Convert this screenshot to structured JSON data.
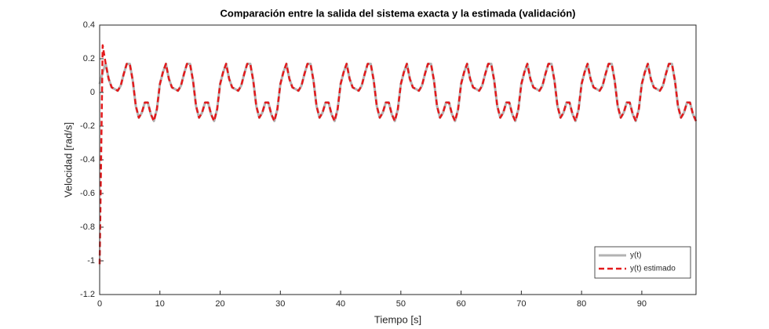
{
  "chart_data": {
    "type": "line",
    "title": "Comparación entre la salida del sistema exacta y la estimada (validación)",
    "x_label": "Tiempo [s]",
    "y_label": "Velocidad [rad/s]",
    "xlim": [
      0,
      99
    ],
    "ylim": [
      -1.2,
      0.4
    ],
    "xticks": [
      0,
      10,
      20,
      30,
      40,
      50,
      60,
      70,
      80,
      90
    ],
    "yticks": [
      -1.2,
      -1,
      -0.8,
      -0.6,
      -0.4,
      -0.2,
      0,
      0.2,
      0.4
    ],
    "legend_position": "southeast",
    "x": [
      0,
      0.5,
      1,
      1.5,
      2,
      2.5,
      3,
      3.5,
      4,
      4.5,
      5,
      5.5,
      6,
      6.5,
      7,
      7.5,
      8,
      8.5,
      9,
      9.5,
      10,
      10.5,
      11,
      11.5,
      12,
      12.5,
      13,
      13.5,
      14,
      14.5,
      15,
      15.5,
      16,
      16.5,
      17,
      17.5,
      18,
      18.5,
      19,
      19.5,
      20,
      20.5,
      21,
      21.5,
      22,
      22.5,
      23,
      23.5,
      24,
      24.5,
      25,
      25.5,
      26,
      26.5,
      27,
      27.5,
      28,
      28.5,
      29,
      29.5,
      30,
      30.5,
      31,
      31.5,
      32,
      32.5,
      33,
      33.5,
      34,
      34.5,
      35,
      35.5,
      36,
      36.5,
      37,
      37.5,
      38,
      38.5,
      39,
      39.5,
      40,
      40.5,
      41,
      41.5,
      42,
      42.5,
      43,
      43.5,
      44,
      44.5,
      45,
      45.5,
      46,
      46.5,
      47,
      47.5,
      48,
      48.5,
      49,
      49.5,
      50,
      50.5,
      51,
      51.5,
      52,
      52.5,
      53,
      53.5,
      54,
      54.5,
      55,
      55.5,
      56,
      56.5,
      57,
      57.5,
      58,
      58.5,
      59,
      59.5,
      60,
      60.5,
      61,
      61.5,
      62,
      62.5,
      63,
      63.5,
      64,
      64.5,
      65,
      65.5,
      66,
      66.5,
      67,
      67.5,
      68,
      68.5,
      69,
      69.5,
      70,
      70.5,
      71,
      71.5,
      72,
      72.5,
      73,
      73.5,
      74,
      74.5,
      75,
      75.5,
      76,
      76.5,
      77,
      77.5,
      78,
      78.5,
      79,
      79.5,
      80,
      80.5,
      81,
      81.5,
      82,
      82.5,
      83,
      83.5,
      84,
      84.5,
      85,
      85.5,
      86,
      86.5,
      87,
      87.5,
      88,
      88.5,
      89,
      89.5,
      90,
      90.5,
      91,
      91.5,
      92,
      92.5,
      93,
      93.5,
      94,
      94.5,
      95,
      95.5,
      96,
      96.5,
      97,
      97.5,
      98,
      98.5,
      99
    ],
    "series": [
      {
        "name": "y(t)",
        "color": "#b3b3b3",
        "dashed": false,
        "values": [
          0.05,
          0.12,
          0.17,
          0.08,
          0.03,
          0.02,
          0.01,
          0.04,
          0.11,
          0.17,
          0.17,
          0.07,
          -0.08,
          -0.15,
          -0.12,
          -0.06,
          -0.06,
          -0.13,
          -0.17,
          -0.1,
          0.05,
          0.12,
          0.17,
          0.08,
          0.03,
          0.02,
          0.01,
          0.04,
          0.11,
          0.17,
          0.17,
          0.07,
          -0.08,
          -0.15,
          -0.12,
          -0.06,
          -0.06,
          -0.13,
          -0.17,
          -0.1,
          0.05,
          0.12,
          0.17,
          0.08,
          0.03,
          0.02,
          0.01,
          0.04,
          0.11,
          0.17,
          0.17,
          0.07,
          -0.08,
          -0.15,
          -0.12,
          -0.06,
          -0.06,
          -0.13,
          -0.17,
          -0.1,
          0.05,
          0.12,
          0.17,
          0.08,
          0.03,
          0.02,
          0.01,
          0.04,
          0.11,
          0.17,
          0.17,
          0.07,
          -0.08,
          -0.15,
          -0.12,
          -0.06,
          -0.06,
          -0.13,
          -0.17,
          -0.1,
          0.05,
          0.12,
          0.17,
          0.08,
          0.03,
          0.02,
          0.01,
          0.04,
          0.11,
          0.17,
          0.17,
          0.07,
          -0.08,
          -0.15,
          -0.12,
          -0.06,
          -0.06,
          -0.13,
          -0.17,
          -0.1,
          0.05,
          0.12,
          0.17,
          0.08,
          0.03,
          0.02,
          0.01,
          0.04,
          0.11,
          0.17,
          0.17,
          0.07,
          -0.08,
          -0.15,
          -0.12,
          -0.06,
          -0.06,
          -0.13,
          -0.17,
          -0.1,
          0.05,
          0.12,
          0.17,
          0.08,
          0.03,
          0.02,
          0.01,
          0.04,
          0.11,
          0.17,
          0.17,
          0.07,
          -0.08,
          -0.15,
          -0.12,
          -0.06,
          -0.06,
          -0.13,
          -0.17,
          -0.1,
          0.05,
          0.12,
          0.17,
          0.08,
          0.03,
          0.02,
          0.01,
          0.04,
          0.11,
          0.17,
          0.17,
          0.07,
          -0.08,
          -0.15,
          -0.12,
          -0.06,
          -0.06,
          -0.13,
          -0.17,
          -0.1,
          0.05,
          0.12,
          0.17,
          0.08,
          0.03,
          0.02,
          0.01,
          0.04,
          0.11,
          0.17,
          0.17,
          0.07,
          -0.08,
          -0.15,
          -0.12,
          -0.06,
          -0.06,
          -0.13,
          -0.17,
          -0.1,
          0.05,
          0.12,
          0.17,
          0.08,
          0.03,
          0.02,
          0.01,
          0.04,
          0.11,
          0.17,
          0.17,
          0.07,
          -0.08,
          -0.15,
          -0.12,
          -0.06,
          -0.06,
          -0.13,
          -0.17
        ]
      },
      {
        "name": "y(t) estimado",
        "color": "#e31a1c",
        "dashed": true,
        "values": [
          -1.02,
          0.28,
          0.17,
          0.08,
          0.03,
          0.02,
          0.01,
          0.04,
          0.11,
          0.17,
          0.17,
          0.07,
          -0.08,
          -0.15,
          -0.12,
          -0.06,
          -0.06,
          -0.13,
          -0.17,
          -0.1,
          0.05,
          0.12,
          0.17,
          0.08,
          0.03,
          0.02,
          0.01,
          0.04,
          0.11,
          0.17,
          0.17,
          0.07,
          -0.08,
          -0.15,
          -0.12,
          -0.06,
          -0.06,
          -0.13,
          -0.17,
          -0.1,
          0.05,
          0.12,
          0.17,
          0.08,
          0.03,
          0.02,
          0.01,
          0.04,
          0.11,
          0.17,
          0.17,
          0.07,
          -0.08,
          -0.15,
          -0.12,
          -0.06,
          -0.06,
          -0.13,
          -0.17,
          -0.1,
          0.05,
          0.12,
          0.17,
          0.08,
          0.03,
          0.02,
          0.01,
          0.04,
          0.11,
          0.17,
          0.17,
          0.07,
          -0.08,
          -0.15,
          -0.12,
          -0.06,
          -0.06,
          -0.13,
          -0.17,
          -0.1,
          0.05,
          0.12,
          0.17,
          0.08,
          0.03,
          0.02,
          0.01,
          0.04,
          0.11,
          0.17,
          0.17,
          0.07,
          -0.08,
          -0.15,
          -0.12,
          -0.06,
          -0.06,
          -0.13,
          -0.17,
          -0.1,
          0.05,
          0.12,
          0.17,
          0.08,
          0.03,
          0.02,
          0.01,
          0.04,
          0.11,
          0.17,
          0.17,
          0.07,
          -0.08,
          -0.15,
          -0.12,
          -0.06,
          -0.06,
          -0.13,
          -0.17,
          -0.1,
          0.05,
          0.12,
          0.17,
          0.08,
          0.03,
          0.02,
          0.01,
          0.04,
          0.11,
          0.17,
          0.17,
          0.07,
          -0.08,
          -0.15,
          -0.12,
          -0.06,
          -0.06,
          -0.13,
          -0.17,
          -0.1,
          0.05,
          0.12,
          0.17,
          0.08,
          0.03,
          0.02,
          0.01,
          0.04,
          0.11,
          0.17,
          0.17,
          0.07,
          -0.08,
          -0.15,
          -0.12,
          -0.06,
          -0.06,
          -0.13,
          -0.17,
          -0.1,
          0.05,
          0.12,
          0.17,
          0.08,
          0.03,
          0.02,
          0.01,
          0.04,
          0.11,
          0.17,
          0.17,
          0.07,
          -0.08,
          -0.15,
          -0.12,
          -0.06,
          -0.06,
          -0.13,
          -0.17,
          -0.1,
          0.05,
          0.12,
          0.17,
          0.08,
          0.03,
          0.02,
          0.01,
          0.04,
          0.11,
          0.17,
          0.17,
          0.07,
          -0.08,
          -0.15,
          -0.12,
          -0.06,
          -0.06,
          -0.13,
          -0.17
        ]
      }
    ]
  }
}
